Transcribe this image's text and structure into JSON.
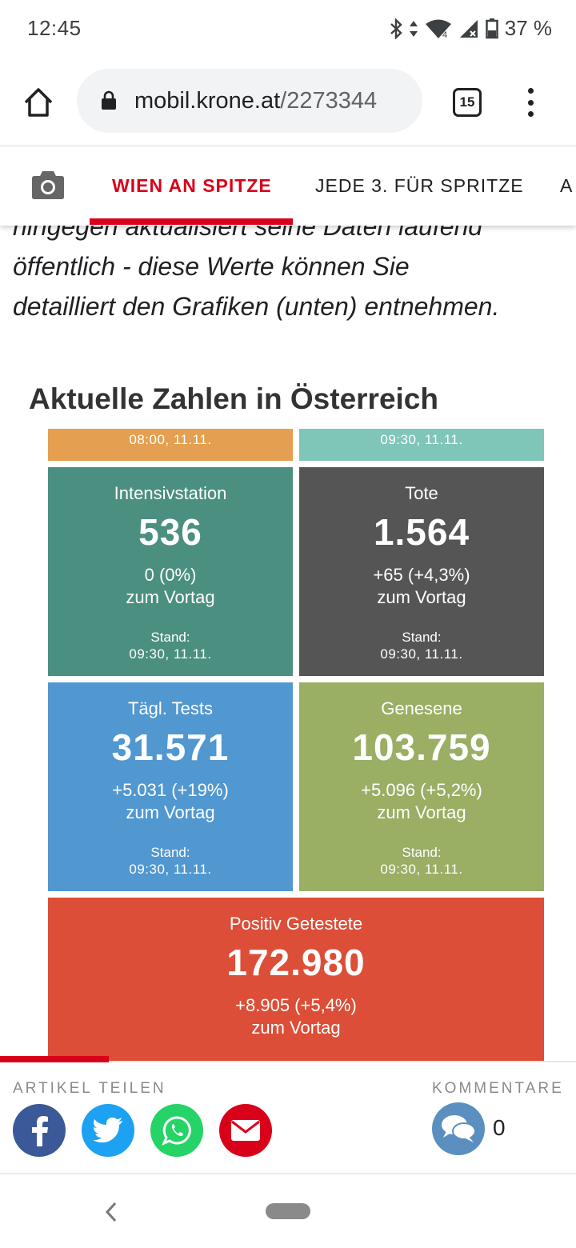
{
  "status_bar": {
    "time": "12:45",
    "battery": "37 %",
    "icons": [
      "bluetooth-icon",
      "data-arrows-icon",
      "wifi-icon",
      "signal-icon",
      "battery-icon"
    ]
  },
  "browser": {
    "url_domain": "mobil.krone.at",
    "url_path": "/2273344",
    "tab_count": "15"
  },
  "site_nav": {
    "items": [
      {
        "label": "WIEN AN SPITZE",
        "active": true
      },
      {
        "label": "JEDE 3. FÜR SPRITZE",
        "active": false
      },
      {
        "label": "A",
        "active": false
      }
    ],
    "accent_color": "#d9001a"
  },
  "article": {
    "line_cut": "hingegen aktualisiert seine Daten laufend",
    "line_1": "öffentlich - diese Werte können Sie",
    "line_2": "detailliert den Grafiken (unten) entnehmen."
  },
  "section_title": "Aktuelle Zahlen in Österreich",
  "tiles": {
    "top_left": {
      "date": "08:00, 11.11.",
      "color": "#e4a050"
    },
    "top_right": {
      "date": "09:30, 11.11.",
      "color": "#7fc6b8"
    },
    "intensiv": {
      "label": "Intensivstation",
      "value": "536",
      "change": "0 (0%)",
      "sub": "zum Vortag",
      "stand": "Stand:",
      "date": "09:30, 11.11.",
      "color": "#4b8f80"
    },
    "tote": {
      "label": "Tote",
      "value": "1.564",
      "change": "+65 (+4,3%)",
      "sub": "zum Vortag",
      "stand": "Stand:",
      "date": "09:30, 11.11.",
      "color": "#555555"
    },
    "tests": {
      "label": "Tägl. Tests",
      "value": "31.571",
      "change": "+5.031 (+19%)",
      "sub": "zum Vortag",
      "stand": "Stand:",
      "date": "09:30, 11.11.",
      "color": "#5197d0"
    },
    "genesene": {
      "label": "Genesene",
      "value": "103.759",
      "change": "+5.096 (+5,2%)",
      "sub": "zum Vortag",
      "stand": "Stand:",
      "date": "09:30, 11.11.",
      "color": "#9aae64"
    },
    "positiv": {
      "label": "Positiv Getestete",
      "value": "172.980",
      "change": "+8.905 (+5,4%)",
      "sub": "zum Vortag",
      "color": "#dc4e37"
    }
  },
  "share_bar": {
    "share_label": "ARTIKEL TEILEN",
    "comments_label": "KOMMENTARE",
    "comments_count": "0",
    "buttons": [
      "facebook-icon",
      "twitter-icon",
      "whatsapp-icon",
      "mail-icon"
    ]
  }
}
